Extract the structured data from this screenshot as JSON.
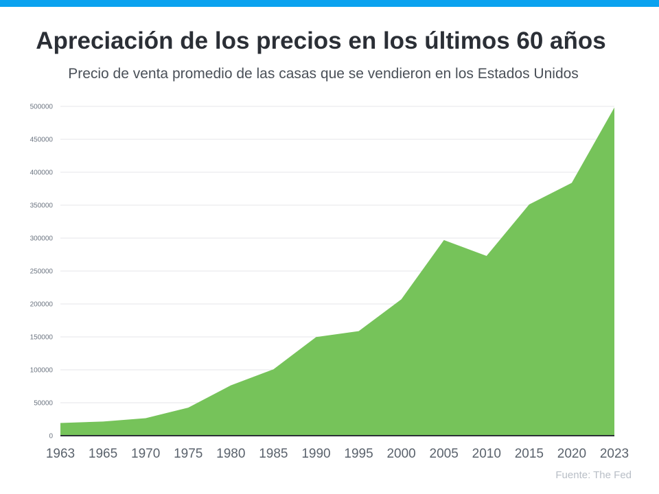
{
  "header": {
    "title": "Apreciación de los precios en los últimos 60 años",
    "subtitle": "Precio de venta promedio de las casas que se vendieron en los Estados Unidos"
  },
  "footer": {
    "source": "Fuente: The Fed"
  },
  "colors": {
    "accent_bar": "#0aa2ef",
    "area_fill": "#76c35a",
    "baseline": "#2b2f36",
    "grid": "#e4e6ea"
  },
  "chart_data": {
    "type": "area",
    "x": [
      "1963",
      "1965",
      "1970",
      "1975",
      "1980",
      "1985",
      "1990",
      "1995",
      "2000",
      "2005",
      "2010",
      "2015",
      "2020",
      "2023"
    ],
    "values": [
      19300,
      21500,
      26600,
      42600,
      76400,
      100800,
      149800,
      158700,
      207000,
      297000,
      272900,
      351000,
      383900,
      498300
    ],
    "ylim": [
      0,
      500000
    ],
    "yticks": [
      0,
      50000,
      100000,
      150000,
      200000,
      250000,
      300000,
      350000,
      400000,
      450000,
      500000
    ],
    "grid": true,
    "legend": "none"
  }
}
